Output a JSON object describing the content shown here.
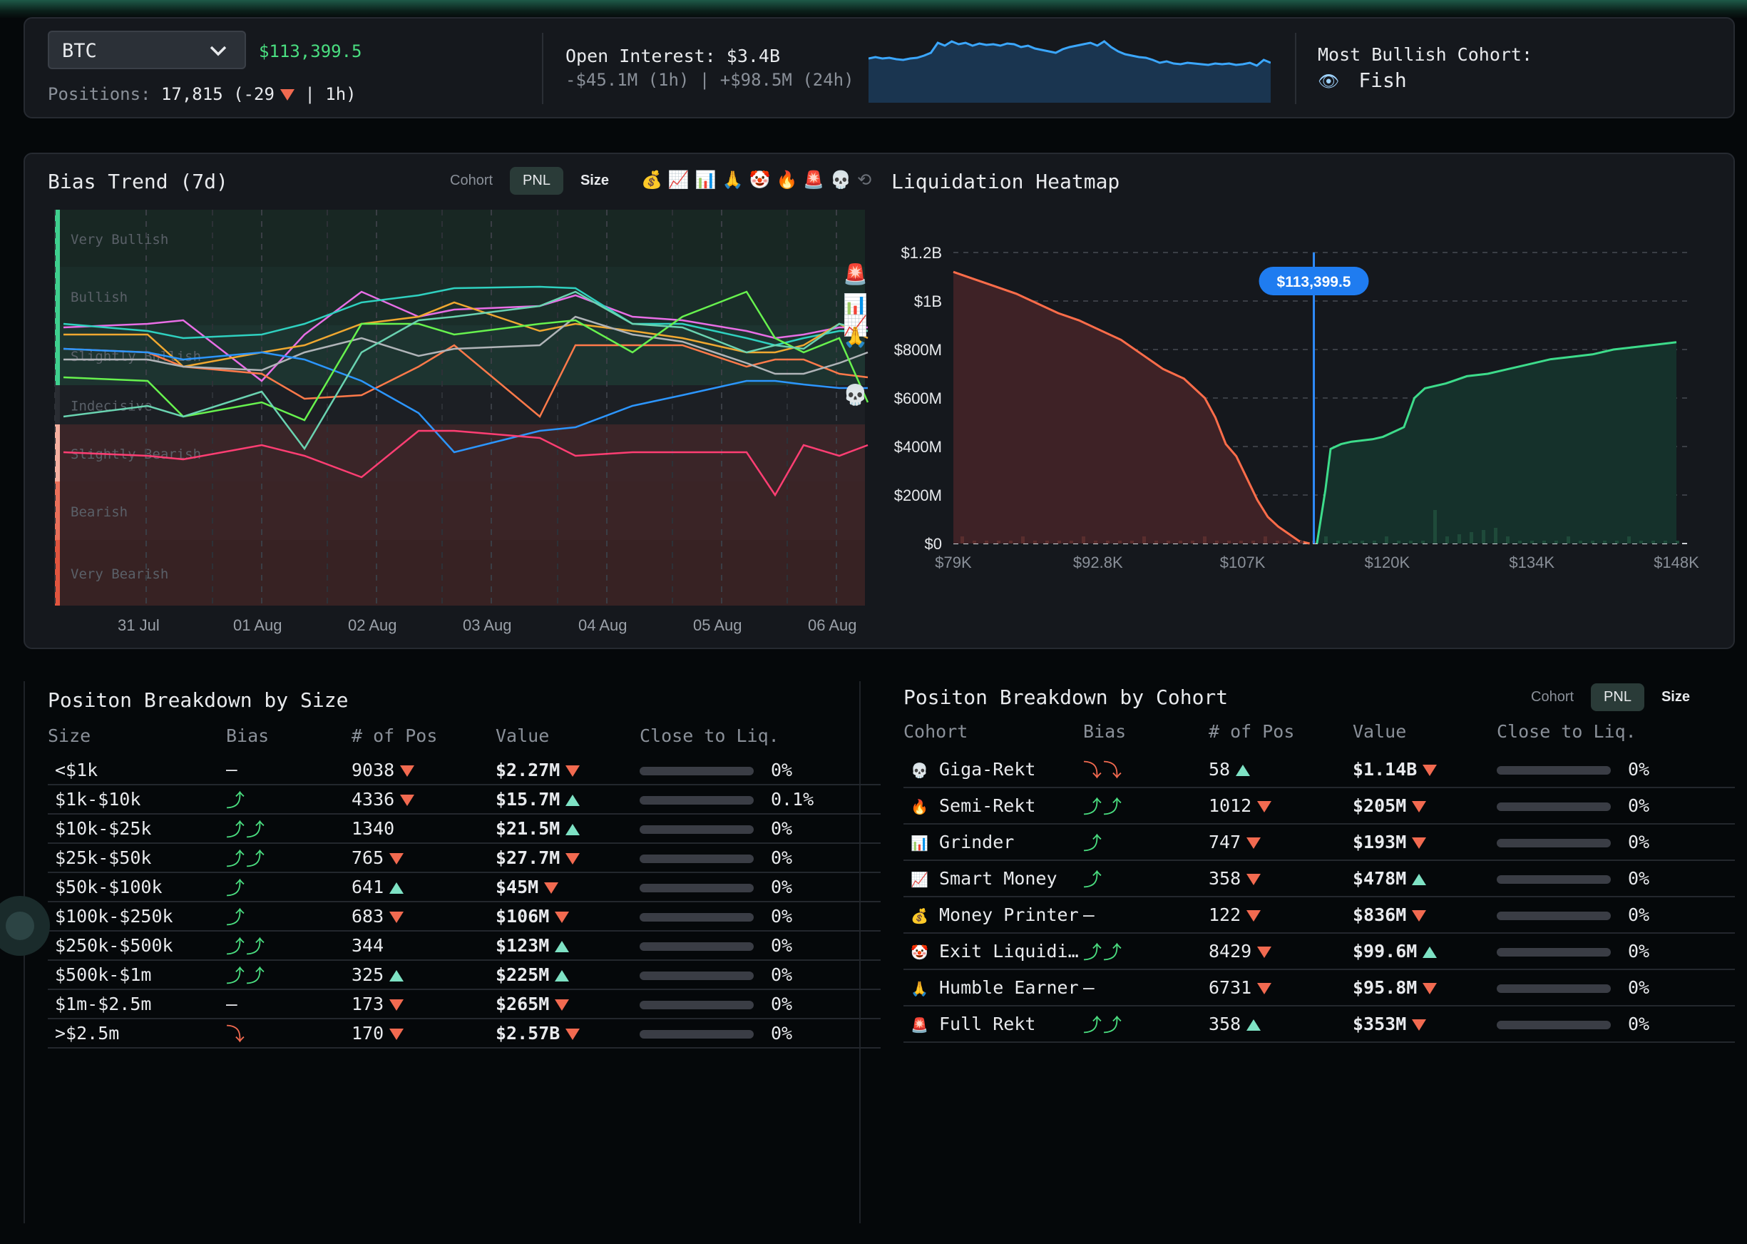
{
  "header": {
    "coin": "BTC",
    "price": "$113,399.5",
    "positions_label": "Positions:",
    "positions_value": "17,815 (-29",
    "positions_suffix": "| 1h)",
    "oi_label": "Open Interest: $3.4B",
    "oi_change": "-$45.1M (1h) | +$98.5M (24h)",
    "bullish_label": "Most Bullish Cohort:",
    "bullish_icon": "👁",
    "bullish_value": "Fish",
    "oi_sparkline": [
      62,
      64,
      62,
      63,
      61,
      60,
      62,
      63,
      66,
      70,
      84,
      80,
      86,
      82,
      84,
      80,
      83,
      81,
      82,
      80,
      83,
      82,
      78,
      80,
      76,
      74,
      72,
      70,
      75,
      78,
      80,
      82,
      84,
      80,
      86,
      78,
      72,
      68,
      66,
      64,
      63,
      60,
      56,
      58,
      55,
      54,
      56,
      55,
      54,
      53,
      55,
      54,
      55,
      53,
      54,
      56,
      52,
      60,
      56
    ]
  },
  "bias": {
    "title": "Bias Trend (7d)",
    "seg": [
      "Cohort",
      "PNL",
      "Size"
    ],
    "emojis": [
      "💰",
      "📈",
      "📊",
      "🙏",
      "🤡",
      "🔥",
      "🚨",
      "💀",
      "⟲"
    ],
    "zones": [
      "Very Bullish",
      "Bullish",
      "Slightly Bullish",
      "Indecisive",
      "Slightly Bearish",
      "Bearish",
      "Very Bearish"
    ],
    "x_labels": [
      "31 Jul",
      "01 Aug",
      "02 Aug",
      "03 Aug",
      "04 Aug",
      "05 Aug",
      "06 Aug"
    ],
    "end_icons": [
      "🚨",
      "📊",
      "📈",
      "🙏",
      "💀"
    ]
  },
  "chart_data": {
    "type": "area",
    "title": "Liquidation Heatmap",
    "current_price_label": "$113,399.5",
    "x_labels": [
      "$79K",
      "$92.8K",
      "$107K",
      "$120K",
      "$134K",
      "$148K"
    ],
    "y_labels": [
      "$1.2B",
      "$1B",
      "$800M",
      "$600M",
      "$400M",
      "$200M",
      "$0"
    ],
    "xlim": [
      79000,
      148000
    ],
    "ylim": [
      0,
      1200
    ],
    "current_price": 113399.5,
    "series": [
      {
        "side": "long",
        "x": [
          79000,
          81000,
          83000,
          85000,
          87000,
          89000,
          91000,
          93000,
          95000,
          97000,
          99000,
          101000,
          102000,
          103000,
          104000,
          105000,
          106000,
          107000,
          108000,
          109000,
          110000,
          111000,
          112000,
          113000
        ],
        "y": [
          1120,
          1090,
          1060,
          1030,
          990,
          950,
          920,
          880,
          840,
          780,
          720,
          680,
          640,
          600,
          520,
          410,
          360,
          270,
          180,
          110,
          70,
          40,
          10,
          0
        ]
      },
      {
        "side": "short",
        "x": [
          113700,
          114500,
          115000,
          116000,
          117000,
          118000,
          119000,
          120000,
          121000,
          122000,
          123000,
          124000,
          126000,
          128000,
          130000,
          132000,
          134000,
          136000,
          138000,
          140000,
          142000,
          144000,
          146000,
          148000
        ],
        "y": [
          0,
          220,
          390,
          410,
          420,
          425,
          430,
          440,
          460,
          480,
          600,
          640,
          660,
          690,
          700,
          720,
          740,
          760,
          770,
          780,
          800,
          810,
          820,
          830
        ]
      }
    ]
  },
  "size_table": {
    "title": "Positon Breakdown by Size",
    "headers": [
      "Size",
      "Bias",
      "# of Pos",
      "Value",
      "Close to Liq."
    ],
    "rows": [
      {
        "size": "<$1k",
        "bias": "—",
        "pos": "9038",
        "pos_dir": "down",
        "value": "$2.27M",
        "val_dir": "down",
        "liq": "0%"
      },
      {
        "size": "$1k-$10k",
        "bias": "⤴",
        "pos": "4336",
        "pos_dir": "down",
        "value": "$15.7M",
        "val_dir": "up",
        "liq": "0.1%"
      },
      {
        "size": "$10k-$25k",
        "bias": "⤴⤴",
        "pos": "1340",
        "pos_dir": "",
        "value": "$21.5M",
        "val_dir": "up",
        "liq": "0%"
      },
      {
        "size": "$25k-$50k",
        "bias": "⤴⤴",
        "pos": "765",
        "pos_dir": "down",
        "value": "$27.7M",
        "val_dir": "down",
        "liq": "0%"
      },
      {
        "size": "$50k-$100k",
        "bias": "⤴",
        "pos": "641",
        "pos_dir": "up",
        "value": "$45M",
        "val_dir": "down",
        "liq": "0%"
      },
      {
        "size": "$100k-$250k",
        "bias": "⤴",
        "pos": "683",
        "pos_dir": "down",
        "value": "$106M",
        "val_dir": "down",
        "liq": "0%"
      },
      {
        "size": "$250k-$500k",
        "bias": "⤴⤴",
        "pos": "344",
        "pos_dir": "",
        "value": "$123M",
        "val_dir": "up",
        "liq": "0%"
      },
      {
        "size": "$500k-$1m",
        "bias": "⤴⤴",
        "pos": "325",
        "pos_dir": "up",
        "value": "$225M",
        "val_dir": "up",
        "liq": "0%"
      },
      {
        "size": "$1m-$2.5m",
        "bias": "—",
        "pos": "173",
        "pos_dir": "down",
        "value": "$265M",
        "val_dir": "down",
        "liq": "0%"
      },
      {
        "size": ">$2.5m",
        "bias": "⤵",
        "pos": "170",
        "pos_dir": "down",
        "value": "$2.57B",
        "val_dir": "down",
        "liq": "0%"
      }
    ]
  },
  "cohort_table": {
    "title": "Positon Breakdown by Cohort",
    "seg": [
      "Cohort",
      "PNL",
      "Size"
    ],
    "headers": [
      "Cohort",
      "Bias",
      "# of Pos",
      "Value",
      "Close to Liq."
    ],
    "rows": [
      {
        "icon": "💀",
        "name": "Giga-Rekt",
        "bias": "⤵⤵",
        "pos": "58",
        "pos_dir": "up",
        "value": "$1.14B",
        "val_dir": "down",
        "liq": "0%"
      },
      {
        "icon": "🔥",
        "name": "Semi-Rekt",
        "bias": "⤴⤴",
        "pos": "1012",
        "pos_dir": "down",
        "value": "$205M",
        "val_dir": "down",
        "liq": "0%"
      },
      {
        "icon": "📊",
        "name": "Grinder",
        "bias": "⤴",
        "pos": "747",
        "pos_dir": "down",
        "value": "$193M",
        "val_dir": "down",
        "liq": "0%"
      },
      {
        "icon": "📈",
        "name": "Smart Money",
        "bias": "⤴",
        "pos": "358",
        "pos_dir": "down",
        "value": "$478M",
        "val_dir": "up",
        "liq": "0%"
      },
      {
        "icon": "💰",
        "name": "Money Printer",
        "bias": "—",
        "pos": "122",
        "pos_dir": "down",
        "value": "$836M",
        "val_dir": "down",
        "liq": "0%"
      },
      {
        "icon": "🤡",
        "name": "Exit Liquidi…",
        "bias": "⤴⤴",
        "pos": "8429",
        "pos_dir": "down",
        "value": "$99.6M",
        "val_dir": "up",
        "liq": "0%"
      },
      {
        "icon": "🙏",
        "name": "Humble Earner",
        "bias": "—",
        "pos": "6731",
        "pos_dir": "down",
        "value": "$95.8M",
        "val_dir": "down",
        "liq": "0%"
      },
      {
        "icon": "🚨",
        "name": "Full Rekt",
        "bias": "⤴⤴",
        "pos": "358",
        "pos_dir": "up",
        "value": "$353M",
        "val_dir": "down",
        "liq": "0%"
      }
    ]
  }
}
